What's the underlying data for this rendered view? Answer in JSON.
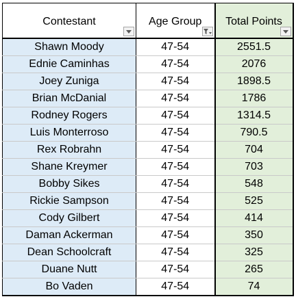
{
  "table": {
    "columns": [
      {
        "label": "Contestant",
        "filter": "dropdown"
      },
      {
        "label": "Age Group",
        "filter": "filtered"
      },
      {
        "label": "Total Points",
        "filter": "dropdown"
      }
    ],
    "rows": [
      {
        "contestant": "Shawn Moody",
        "age_group": "47-54",
        "total_points": "2551.5"
      },
      {
        "contestant": "Ednie Caminhas",
        "age_group": "47-54",
        "total_points": "2076"
      },
      {
        "contestant": "Joey Zuniga",
        "age_group": "47-54",
        "total_points": "1898.5"
      },
      {
        "contestant": "Brian McDanial",
        "age_group": "47-54",
        "total_points": "1786"
      },
      {
        "contestant": "Rodney Rogers",
        "age_group": "47-54",
        "total_points": "1314.5"
      },
      {
        "contestant": "Luis Monterroso",
        "age_group": "47-54",
        "total_points": "790.5"
      },
      {
        "contestant": "Rex Robrahn",
        "age_group": "47-54",
        "total_points": "704"
      },
      {
        "contestant": "Shane Kreymer",
        "age_group": "47-54",
        "total_points": "703"
      },
      {
        "contestant": "Bobby Sikes",
        "age_group": "47-54",
        "total_points": "548"
      },
      {
        "contestant": "Rickie Sampson",
        "age_group": "47-54",
        "total_points": "525"
      },
      {
        "contestant": "Cody Gilbert",
        "age_group": "47-54",
        "total_points": "414"
      },
      {
        "contestant": "Daman Ackerman",
        "age_group": "47-54",
        "total_points": "350"
      },
      {
        "contestant": "Dean Schoolcraft",
        "age_group": "47-54",
        "total_points": "325"
      },
      {
        "contestant": "Duane Nutt",
        "age_group": "47-54",
        "total_points": "265"
      },
      {
        "contestant": "Bo Vaden",
        "age_group": "47-54",
        "total_points": "74"
      }
    ]
  },
  "colors": {
    "contestant_fill": "#ddebf7",
    "points_fill": "#e2efda",
    "border": "#000000"
  }
}
